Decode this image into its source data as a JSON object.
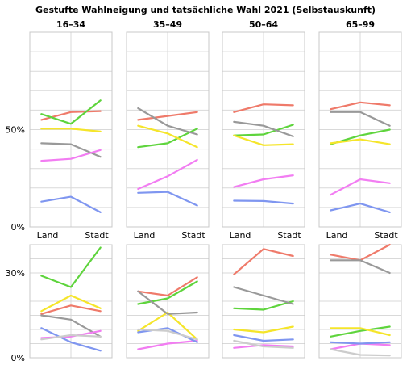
{
  "chart_data": {
    "type": "line",
    "title": "Gestufte Wahlneigung und tatsächliche Wahl 2021 (Selbstauskunft)",
    "x": [
      "Land",
      "",
      "Stadt"
    ],
    "x_tick_labels": [
      "Land",
      "Stadt"
    ],
    "age_groups": [
      "16–34",
      "35–49",
      "50–64",
      "65–99"
    ],
    "rows": [
      {
        "ylim": [
          0,
          100
        ],
        "y_ticks": [
          0,
          50
        ],
        "y_tick_labels": [
          "0%",
          "50%"
        ],
        "grid": [
          0,
          10,
          20,
          30,
          40,
          50,
          60,
          70,
          80,
          90,
          100
        ],
        "panels": [
          {
            "series": [
              {
                "color": "#ef7a6a",
                "values": [
                  55,
                  59,
                  59.5
                ]
              },
              {
                "color": "#5ed43c",
                "values": [
                  58,
                  53,
                  65
                ]
              },
              {
                "color": "#f5e52a",
                "values": [
                  50.5,
                  50.5,
                  49
                ]
              },
              {
                "color": "#999999",
                "values": [
                  43,
                  42.5,
                  36
                ]
              },
              {
                "color": "#f27df2",
                "values": [
                  34,
                  35,
                  39.5
                ]
              },
              {
                "color": "#7f96f0",
                "values": [
                  13,
                  15.5,
                  7.5
                ]
              }
            ]
          },
          {
            "series": [
              {
                "color": "#ef7a6a",
                "values": [
                  55,
                  57,
                  59
                ]
              },
              {
                "color": "#5ed43c",
                "values": [
                  41,
                  43,
                  50.5
                ]
              },
              {
                "color": "#f5e52a",
                "values": [
                  52,
                  48,
                  41
                ]
              },
              {
                "color": "#999999",
                "values": [
                  61,
                  52,
                  47.5
                ]
              },
              {
                "color": "#f27df2",
                "values": [
                  19.5,
                  26,
                  34.5
                ]
              },
              {
                "color": "#7f96f0",
                "values": [
                  17.5,
                  18,
                  11
                ]
              }
            ]
          },
          {
            "series": [
              {
                "color": "#ef7a6a",
                "values": [
                  59,
                  63,
                  62.5
                ]
              },
              {
                "color": "#5ed43c",
                "values": [
                  47,
                  47.5,
                  52.5
                ]
              },
              {
                "color": "#f5e52a",
                "values": [
                  47,
                  42,
                  42.5
                ]
              },
              {
                "color": "#999999",
                "values": [
                  54,
                  52,
                  46.5
                ]
              },
              {
                "color": "#f27df2",
                "values": [
                  20.5,
                  24.5,
                  26.5
                ]
              },
              {
                "color": "#7f96f0",
                "values": [
                  13.5,
                  13.3,
                  12
                ]
              }
            ]
          },
          {
            "series": [
              {
                "color": "#ef7a6a",
                "values": [
                  60.5,
                  64,
                  62.5
                ]
              },
              {
                "color": "#5ed43c",
                "values": [
                  42.5,
                  47,
                  50
                ]
              },
              {
                "color": "#f5e52a",
                "values": [
                  43,
                  45,
                  42.5
                ]
              },
              {
                "color": "#999999",
                "values": [
                  59,
                  59,
                  52
                ]
              },
              {
                "color": "#f27df2",
                "values": [
                  16.5,
                  24.5,
                  22.5
                ]
              },
              {
                "color": "#7f96f0",
                "values": [
                  8.5,
                  12,
                  7.5
                ]
              }
            ]
          }
        ]
      },
      {
        "ylim": [
          0,
          40
        ],
        "y_ticks": [
          0,
          30
        ],
        "y_tick_labels": [
          "0%",
          "30%"
        ],
        "grid": [
          0,
          5,
          10,
          15,
          20,
          25,
          30,
          35,
          40
        ],
        "panels": [
          {
            "series": [
              {
                "color": "#ef7a6a",
                "values": [
                  15.5,
                  18.5,
                  16.5
                ]
              },
              {
                "color": "#5ed43c",
                "values": [
                  29,
                  25,
                  39
                ]
              },
              {
                "color": "#f5e52a",
                "values": [
                  16.5,
                  22,
                  17.5
                ]
              },
              {
                "color": "#999999",
                "values": [
                  15,
                  13.5,
                  7.5
                ]
              },
              {
                "color": "#f27df2",
                "values": [
                  7,
                  7.5,
                  9.5
                ]
              },
              {
                "color": "#7f96f0",
                "values": [
                  10.5,
                  5.5,
                  2.5
                ]
              },
              {
                "color": "#cccccc",
                "values": [
                  6.5,
                  8,
                  7.5
                ]
              }
            ]
          },
          {
            "series": [
              {
                "color": "#ef7a6a",
                "values": [
                  23.5,
                  22,
                  28.5
                ]
              },
              {
                "color": "#5ed43c",
                "values": [
                  19,
                  21,
                  27
                ]
              },
              {
                "color": "#f5e52a",
                "values": [
                  9.5,
                  16,
                  6.5
                ]
              },
              {
                "color": "#999999",
                "values": [
                  23.5,
                  15.5,
                  16
                ]
              },
              {
                "color": "#f27df2",
                "values": [
                  3,
                  5,
                  6
                ]
              },
              {
                "color": "#7f96f0",
                "values": [
                  9,
                  10.5,
                  5.5
                ]
              },
              {
                "color": "#cccccc",
                "values": [
                  10,
                  9.5,
                  6.5
                ]
              }
            ]
          },
          {
            "series": [
              {
                "color": "#ef7a6a",
                "values": [
                  29.5,
                  38.5,
                  36
                ]
              },
              {
                "color": "#5ed43c",
                "values": [
                  17.5,
                  17,
                  20
                ]
              },
              {
                "color": "#f5e52a",
                "values": [
                  10,
                  9,
                  11
                ]
              },
              {
                "color": "#999999",
                "values": [
                  25,
                  22,
                  19
                ]
              },
              {
                "color": "#f27df2",
                "values": [
                  3.5,
                  4.5,
                  4
                ]
              },
              {
                "color": "#7f96f0",
                "values": [
                  8,
                  6,
                  6.5
                ]
              },
              {
                "color": "#cccccc",
                "values": [
                  6,
                  4,
                  3.5
                ]
              }
            ]
          },
          {
            "series": [
              {
                "color": "#ef7a6a",
                "values": [
                  36.5,
                  34.5,
                  40
                ]
              },
              {
                "color": "#5ed43c",
                "values": [
                  7.5,
                  9.5,
                  11
                ]
              },
              {
                "color": "#f5e52a",
                "values": [
                  10.5,
                  10.5,
                  8
                ]
              },
              {
                "color": "#999999",
                "values": [
                  34.5,
                  34.5,
                  30
                ]
              },
              {
                "color": "#f27df2",
                "values": [
                  3,
                  5,
                  4.5
                ]
              },
              {
                "color": "#7f96f0",
                "values": [
                  5.5,
                  5,
                  5.5
                ]
              },
              {
                "color": "#cccccc",
                "values": [
                  3,
                  1,
                  0.8
                ]
              }
            ]
          }
        ]
      }
    ]
  }
}
